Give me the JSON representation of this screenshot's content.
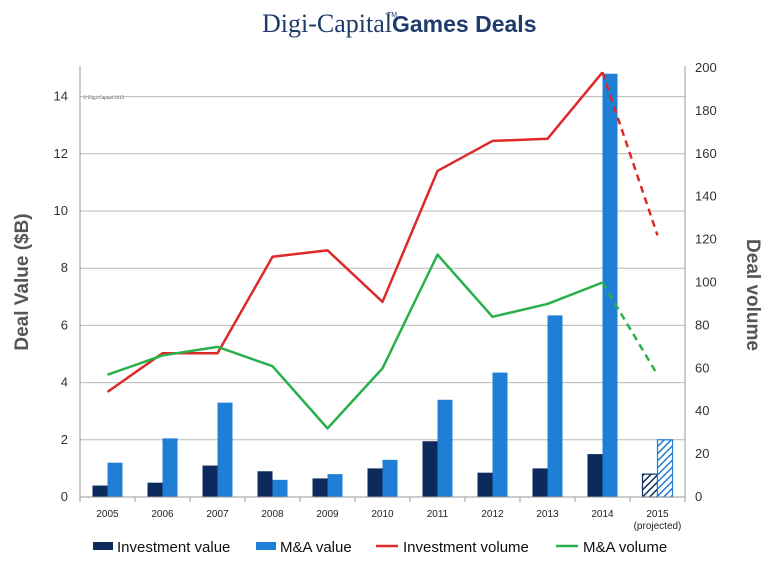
{
  "title": {
    "brand": "Digi-Capital",
    "trademark": "TM",
    "main": "Games Deals"
  },
  "copyright": "© Digi-Capital 2015",
  "colors": {
    "investment_value": "#0d2a5c",
    "ma_value": "#1f7fd4",
    "investment_volume": "#dc2a2a",
    "ma_volume": "#2ab04a",
    "grid": "#b8b8b8"
  },
  "chart_data": {
    "type": "bar",
    "categories": [
      "2005",
      "2006",
      "2007",
      "2008",
      "2009",
      "2010",
      "2011",
      "2012",
      "2013",
      "2014",
      "2015"
    ],
    "category_note": "(projected)",
    "projected_index": 10,
    "ylabel": "Deal Value ($B)",
    "y2label": "Deal volume",
    "ylim": [
      0,
      15
    ],
    "yticks": [
      0,
      2,
      4,
      6,
      8,
      10,
      12,
      14
    ],
    "y2lim": [
      0,
      200
    ],
    "y2ticks": [
      0,
      20,
      40,
      60,
      80,
      100,
      120,
      140,
      160,
      180,
      200
    ],
    "grid": true,
    "legend_position": "bottom",
    "series": [
      {
        "name": "Investment value",
        "kind": "bar",
        "axis": "left",
        "values": [
          0.4,
          0.5,
          1.1,
          0.9,
          0.65,
          1.0,
          1.95,
          0.85,
          1.0,
          1.5,
          0.8
        ]
      },
      {
        "name": "M&A value",
        "kind": "bar",
        "axis": "left",
        "values": [
          1.2,
          2.05,
          3.3,
          0.6,
          0.8,
          1.3,
          3.4,
          4.35,
          6.35,
          14.8,
          2.0
        ]
      },
      {
        "name": "Investment volume",
        "kind": "line",
        "axis": "right",
        "values": [
          49,
          67,
          67,
          112,
          115,
          91,
          152,
          166,
          167,
          198,
          122
        ]
      },
      {
        "name": "M&A volume",
        "kind": "line",
        "axis": "right",
        "values": [
          57,
          66,
          70,
          61,
          32,
          60,
          113,
          84,
          90,
          100,
          57
        ]
      }
    ]
  }
}
